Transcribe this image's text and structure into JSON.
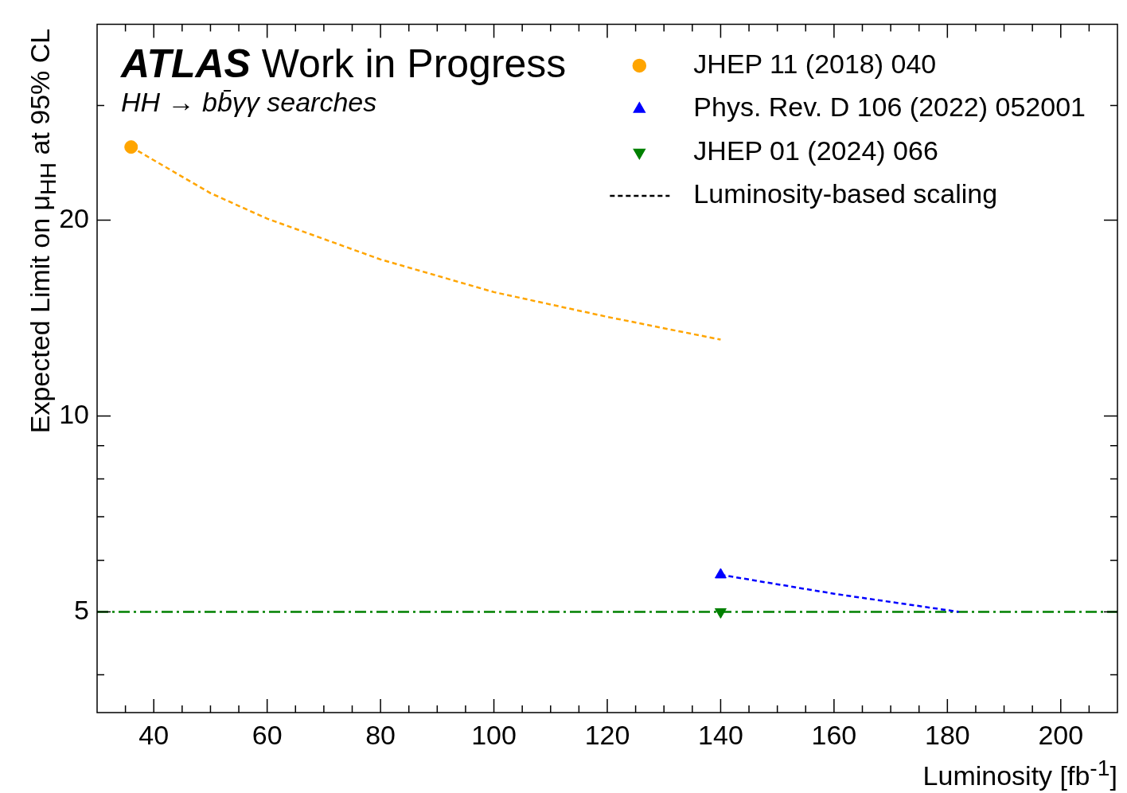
{
  "chart_data": {
    "type": "line",
    "title": "ATLAS Work in Progress",
    "subtitle": "HH → bb̄γγ searches",
    "xlabel": "Luminosity [fb$^{-1}$]",
    "ylabel": "Expected Limit on μ$_{HH}$ at 95% CL",
    "xlim": [
      30,
      210
    ],
    "xticks": [
      {
        "value": 35,
        "label": null
      },
      40,
      {
        "value": 45,
        "label": null
      },
      {
        "value": 50,
        "label": null
      },
      {
        "value": 55,
        "label": null
      },
      60,
      {
        "value": 65,
        "label": null
      },
      {
        "value": 70,
        "label": null
      },
      {
        "value": 75,
        "label": null
      },
      80,
      {
        "value": 85,
        "label": null
      },
      {
        "value": 90,
        "label": null
      },
      {
        "value": 95,
        "label": null
      },
      100,
      {
        "value": 105,
        "label": null
      },
      {
        "value": 110,
        "label": null
      },
      {
        "value": 115,
        "label": null
      },
      120,
      {
        "value": 125,
        "label": null
      },
      {
        "value": 130,
        "label": null
      },
      {
        "value": 135,
        "label": null
      },
      140,
      {
        "value": 145,
        "label": null
      },
      {
        "value": 150,
        "label": null
      },
      {
        "value": 155,
        "label": null
      },
      160,
      {
        "value": 165,
        "label": null
      },
      {
        "value": 170,
        "label": null
      },
      {
        "value": 175,
        "label": null
      },
      180,
      {
        "value": 185,
        "label": null
      },
      {
        "value": 190,
        "label": null
      },
      {
        "value": 195,
        "label": null
      },
      200,
      {
        "value": 205,
        "label": null
      }
    ],
    "ylim": [
      3.5,
      40
    ],
    "yticks": [
      {
        "value": 4,
        "label": null
      },
      5,
      {
        "value": 6,
        "label": null
      },
      {
        "value": 7,
        "label": null
      },
      {
        "value": 8,
        "label": null
      },
      {
        "value": 9,
        "label": null
      },
      10,
      20,
      {
        "value": 30,
        "label": null
      }
    ],
    "log": "y",
    "grid": false,
    "legend": "top right",
    "series": [
      {
        "name": "JHEP 11 (2018) 040",
        "type": "scatter",
        "marker": "circle",
        "color": "#ffa500",
        "x": [
          36
        ],
        "values": [
          25.9
        ]
      },
      {
        "name": "Phys. Rev. D 106 (2022) 052001",
        "type": "scatter",
        "marker": "triangle",
        "color": "#0000ff",
        "x": [
          140
        ],
        "values": [
          5.7
        ]
      },
      {
        "name": "JHEP 01 (2024) 066",
        "type": "scatter",
        "marker": "triangle_down",
        "color": "#008000",
        "x": [
          140
        ],
        "values": [
          5.0
        ]
      },
      {
        "type": "line",
        "marker": "none",
        "line_style": "dashed",
        "color": "#ffa500",
        "x": [
          36,
          50,
          60,
          80,
          100,
          120,
          140
        ],
        "values": [
          25.9,
          22.0,
          20.1,
          17.4,
          15.5,
          14.2,
          13.1
        ]
      },
      {
        "type": "line",
        "marker": "none",
        "line_style": "dashed",
        "color": "#0000ff",
        "x": [
          140,
          160,
          182
        ],
        "values": [
          5.7,
          5.33,
          5.0
        ]
      },
      {
        "type": "line",
        "marker": "none",
        "line_style": "dashdot",
        "color": "#008000",
        "x": [
          30,
          210
        ],
        "values": [
          5,
          5
        ]
      },
      {
        "name": "Luminosity-based scaling",
        "type": "line",
        "marker": "none",
        "line_style": "dashed",
        "color": "#000000"
      }
    ]
  }
}
